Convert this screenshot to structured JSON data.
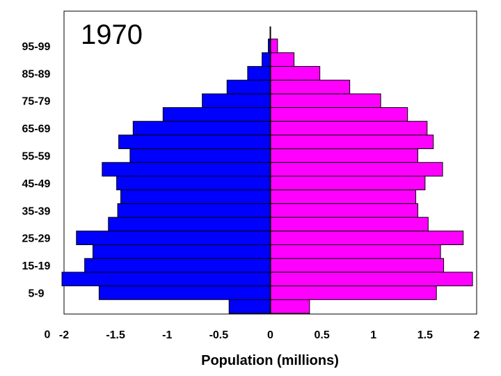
{
  "chart_data": {
    "type": "bar",
    "orientation": "horizontal",
    "subtype": "population-pyramid",
    "annotation": "1970",
    "xlabel": "Population (millions)",
    "ylabel": "",
    "xlim": [
      -2,
      2
    ],
    "x_ticks": [
      "-2",
      "-1.5",
      "-1",
      "-0.5",
      "0",
      "0.5",
      "1",
      "1.5",
      "2"
    ],
    "y_tick_labels": [
      "95-99",
      "85-89",
      "75-79",
      "65-69",
      "55-59",
      "45-49",
      "35-39",
      "25-29",
      "15-19",
      "5-9",
      "0"
    ],
    "categories": [
      "0-4",
      "5-9",
      "10-14",
      "15-19",
      "20-24",
      "25-29",
      "30-34",
      "35-39",
      "40-44",
      "45-49",
      "50-54",
      "55-59",
      "60-64",
      "65-69",
      "70-74",
      "75-79",
      "80-84",
      "85-89",
      "90-94",
      "95-99"
    ],
    "series": [
      {
        "color": "#0000ff",
        "side": "left",
        "values": [
          -0.4,
          -1.66,
          -2.02,
          -1.8,
          -1.72,
          -1.88,
          -1.57,
          -1.48,
          -1.45,
          -1.49,
          -1.63,
          -1.36,
          -1.47,
          -1.33,
          -1.04,
          -0.66,
          -0.42,
          -0.22,
          -0.08,
          -0.02
        ]
      },
      {
        "color": "#ff00ff",
        "side": "right",
        "values": [
          0.38,
          1.61,
          1.96,
          1.68,
          1.65,
          1.87,
          1.53,
          1.43,
          1.41,
          1.5,
          1.67,
          1.43,
          1.58,
          1.52,
          1.33,
          1.07,
          0.77,
          0.48,
          0.23,
          0.07
        ]
      }
    ],
    "grid": false,
    "legend": "none"
  }
}
